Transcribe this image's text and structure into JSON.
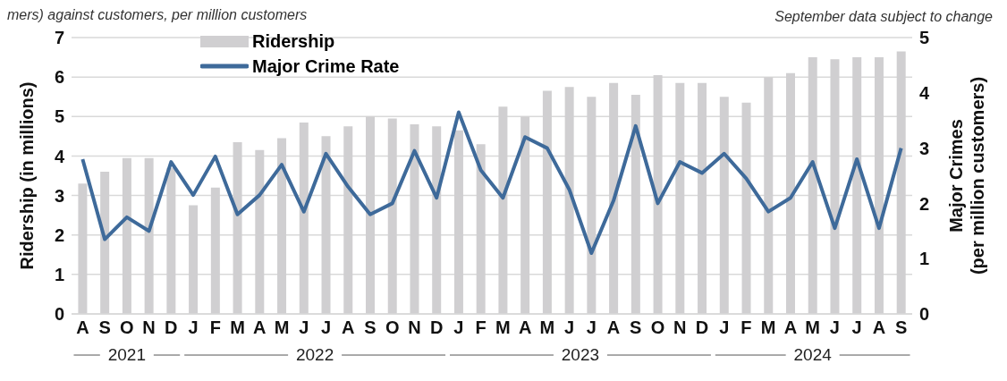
{
  "chart_data": {
    "type": "bar",
    "subtitle": "mers) against customers, per million customers",
    "annotations": [
      "September data subject to change",
      "2021",
      "2022",
      "2023",
      "2024"
    ],
    "categories": [
      "A",
      "S",
      "O",
      "N",
      "D",
      "J",
      "F",
      "M",
      "A",
      "M",
      "J",
      "J",
      "A",
      "S",
      "O",
      "N",
      "D",
      "J",
      "F",
      "M",
      "A",
      "M",
      "J",
      "J",
      "A",
      "S",
      "O",
      "N",
      "D",
      "J",
      "F",
      "M",
      "A",
      "M",
      "J",
      "J",
      "A",
      "S"
    ],
    "ylabel": "Ridership (in millions)",
    "y2label": "Major Crimes\n(per million customers)",
    "ylim": [
      0,
      7
    ],
    "yticks": [
      0,
      1,
      2,
      3,
      4,
      5,
      6,
      7
    ],
    "y2lim": [
      0,
      5
    ],
    "y2ticks": [
      0,
      1,
      2,
      3,
      4,
      5
    ],
    "grid": "y",
    "legend": "top left",
    "series": [
      {
        "name": "Ridership",
        "color": "#d0cfd1",
        "values": [
          3.3,
          3.6,
          3.95,
          3.95,
          3.7,
          2.75,
          3.2,
          4.35,
          4.15,
          4.45,
          4.85,
          4.5,
          4.75,
          5.0,
          4.95,
          4.8,
          4.75,
          4.65,
          4.3,
          5.25,
          5.0,
          5.65,
          5.75,
          5.5,
          5.85,
          5.55,
          6.05,
          5.85,
          5.85,
          5.5,
          5.35,
          6.0,
          6.1,
          6.5,
          6.45,
          6.5,
          6.5,
          6.65
        ]
      },
      {
        "name": "Major Crime Rate",
        "type": "line",
        "axis": "y2",
        "color": "#3e6a9a",
        "values": [
          2.8,
          1.35,
          1.75,
          1.5,
          2.75,
          2.15,
          2.85,
          1.8,
          2.15,
          2.7,
          1.85,
          2.9,
          2.3,
          1.8,
          2.0,
          2.95,
          2.1,
          3.65,
          2.6,
          2.1,
          3.2,
          3.0,
          2.25,
          1.1,
          2.05,
          3.4,
          2.0,
          2.75,
          2.55,
          2.9,
          2.45,
          1.85,
          2.1,
          2.75,
          1.55,
          2.8,
          1.55,
          3.0
        ]
      }
    ]
  }
}
